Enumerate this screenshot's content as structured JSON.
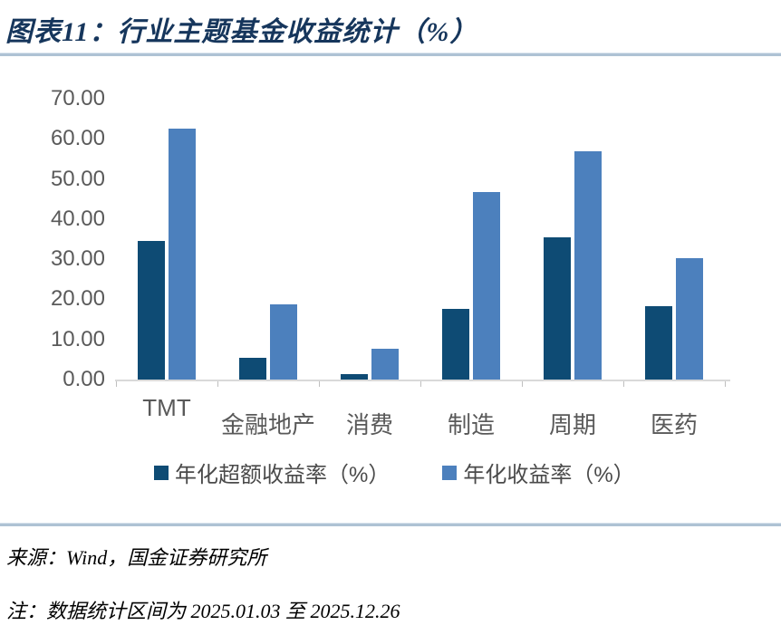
{
  "title": "图表11：行业主题基金收益统计（%）",
  "chart_data": {
    "type": "bar",
    "title": "图表11：行业主题基金收益统计（%）",
    "categories": [
      "TMT",
      "金融地产",
      "消费",
      "制造",
      "周期",
      "医药"
    ],
    "series": [
      {
        "name": "年化超额收益率（%）",
        "color": "#0e4b74",
        "values": [
          34.5,
          5.5,
          1.3,
          17.7,
          35.4,
          18.3
        ]
      },
      {
        "name": "年化收益率（%）",
        "color": "#4c80bd",
        "values": [
          62.6,
          18.7,
          7.7,
          46.8,
          56.8,
          30.2
        ]
      }
    ],
    "xlabel": "",
    "ylabel": "",
    "ylim": [
      0,
      70
    ],
    "ytick_step": 10,
    "yticks": [
      "70.00",
      "60.00",
      "50.00",
      "40.00",
      "30.00",
      "20.00",
      "10.00",
      "0.00"
    ],
    "grid": false,
    "legend_position": "bottom"
  },
  "footer": {
    "source": "来源：Wind，国金证券研究所",
    "note": "注：数据统计区间为 2025.01.03 至 2025.12.26"
  }
}
